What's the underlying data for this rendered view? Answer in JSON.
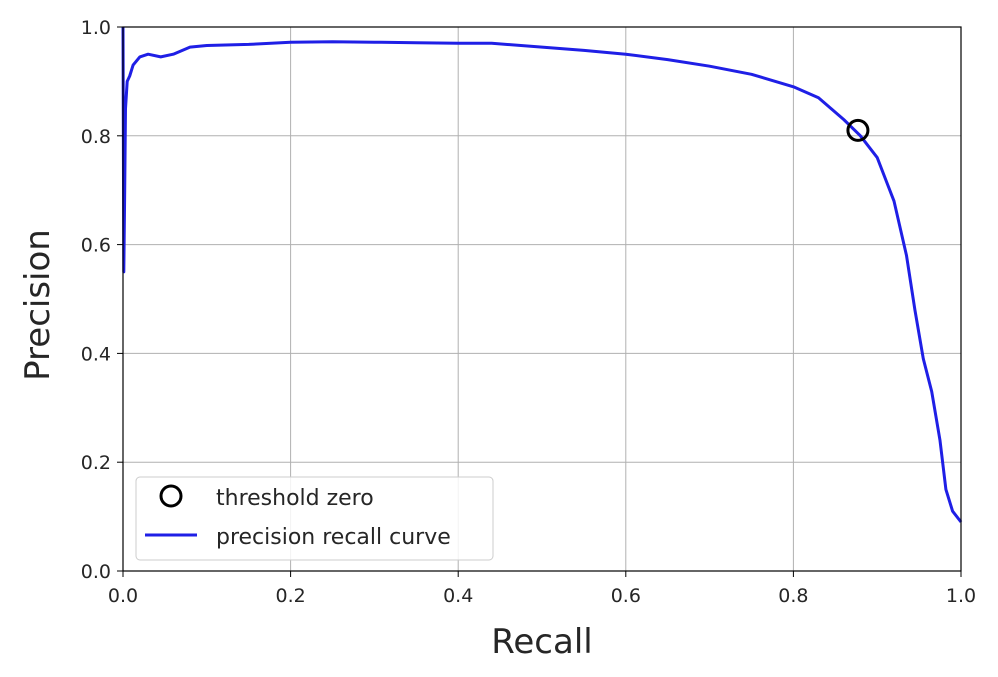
{
  "chart_data": {
    "type": "line",
    "title": "",
    "xlabel": "Recall",
    "ylabel": "Precision",
    "xlim": [
      0.0,
      1.0
    ],
    "ylim": [
      0.0,
      1.0
    ],
    "xticks": [
      "0.0",
      "0.2",
      "0.4",
      "0.6",
      "0.8",
      "1.0"
    ],
    "yticks": [
      "0.0",
      "0.2",
      "0.4",
      "0.6",
      "0.8",
      "1.0"
    ],
    "grid": true,
    "legend_position": "lower-left",
    "series": [
      {
        "name": "precision recall curve",
        "style": "line",
        "color": "#1f1fe6",
        "points": [
          [
            0.0,
            1.0
          ],
          [
            0.001,
            0.55
          ],
          [
            0.002,
            0.7
          ],
          [
            0.003,
            0.85
          ],
          [
            0.005,
            0.9
          ],
          [
            0.008,
            0.91
          ],
          [
            0.012,
            0.93
          ],
          [
            0.02,
            0.945
          ],
          [
            0.03,
            0.95
          ],
          [
            0.045,
            0.945
          ],
          [
            0.06,
            0.95
          ],
          [
            0.08,
            0.963
          ],
          [
            0.1,
            0.966
          ],
          [
            0.15,
            0.968
          ],
          [
            0.2,
            0.972
          ],
          [
            0.25,
            0.973
          ],
          [
            0.3,
            0.972
          ],
          [
            0.35,
            0.971
          ],
          [
            0.4,
            0.97
          ],
          [
            0.44,
            0.97
          ],
          [
            0.5,
            0.963
          ],
          [
            0.55,
            0.957
          ],
          [
            0.6,
            0.95
          ],
          [
            0.65,
            0.94
          ],
          [
            0.7,
            0.928
          ],
          [
            0.75,
            0.913
          ],
          [
            0.8,
            0.89
          ],
          [
            0.83,
            0.87
          ],
          [
            0.86,
            0.83
          ],
          [
            0.88,
            0.8
          ],
          [
            0.9,
            0.76
          ],
          [
            0.92,
            0.68
          ],
          [
            0.935,
            0.58
          ],
          [
            0.945,
            0.48
          ],
          [
            0.955,
            0.39
          ],
          [
            0.965,
            0.33
          ],
          [
            0.975,
            0.24
          ],
          [
            0.982,
            0.15
          ],
          [
            0.99,
            0.11
          ],
          [
            1.0,
            0.09
          ]
        ]
      },
      {
        "name": "threshold zero",
        "style": "marker",
        "marker": "open-circle",
        "color": "#000000",
        "points": [
          [
            0.877,
            0.81
          ]
        ]
      }
    ]
  }
}
